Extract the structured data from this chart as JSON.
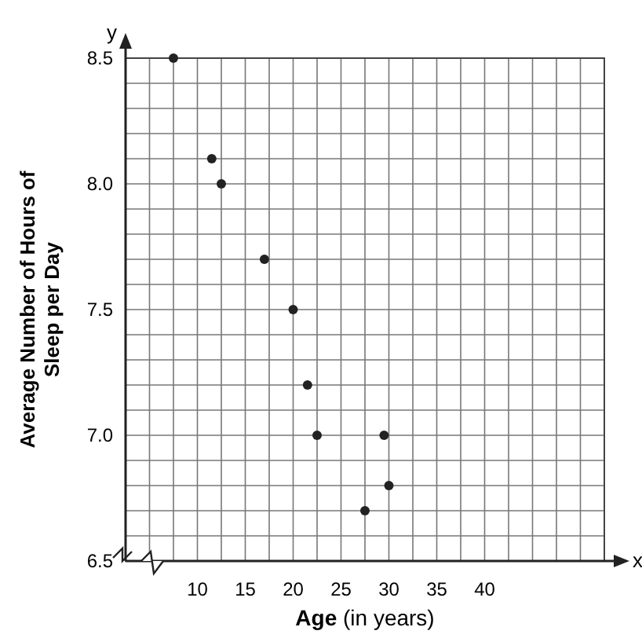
{
  "chart_data": {
    "type": "scatter",
    "xlabel": "Age (in years)",
    "ylabel": "Average Number of Hours of Sleep per Day",
    "annotations": [
      "y",
      "x"
    ],
    "x": [
      7.5,
      11.5,
      12.5,
      17,
      20,
      21.5,
      22.5,
      27.5,
      29.5,
      30
    ],
    "values": [
      8.5,
      8.1,
      8.0,
      7.7,
      7.5,
      7.2,
      7.0,
      6.7,
      7.0,
      6.8
    ],
    "color": "#222222",
    "marker": "circle",
    "grid": true,
    "xlim": [
      2.5,
      52.5
    ],
    "xticks": [
      10,
      15,
      20,
      25,
      30,
      35,
      40
    ],
    "ylim": [
      6.5,
      8.5
    ],
    "yticks": [
      6.5,
      {
        "value": 7,
        "label": "7.0"
      },
      7.5,
      {
        "value": 8,
        "label": "8.0"
      },
      8.5
    ]
  }
}
